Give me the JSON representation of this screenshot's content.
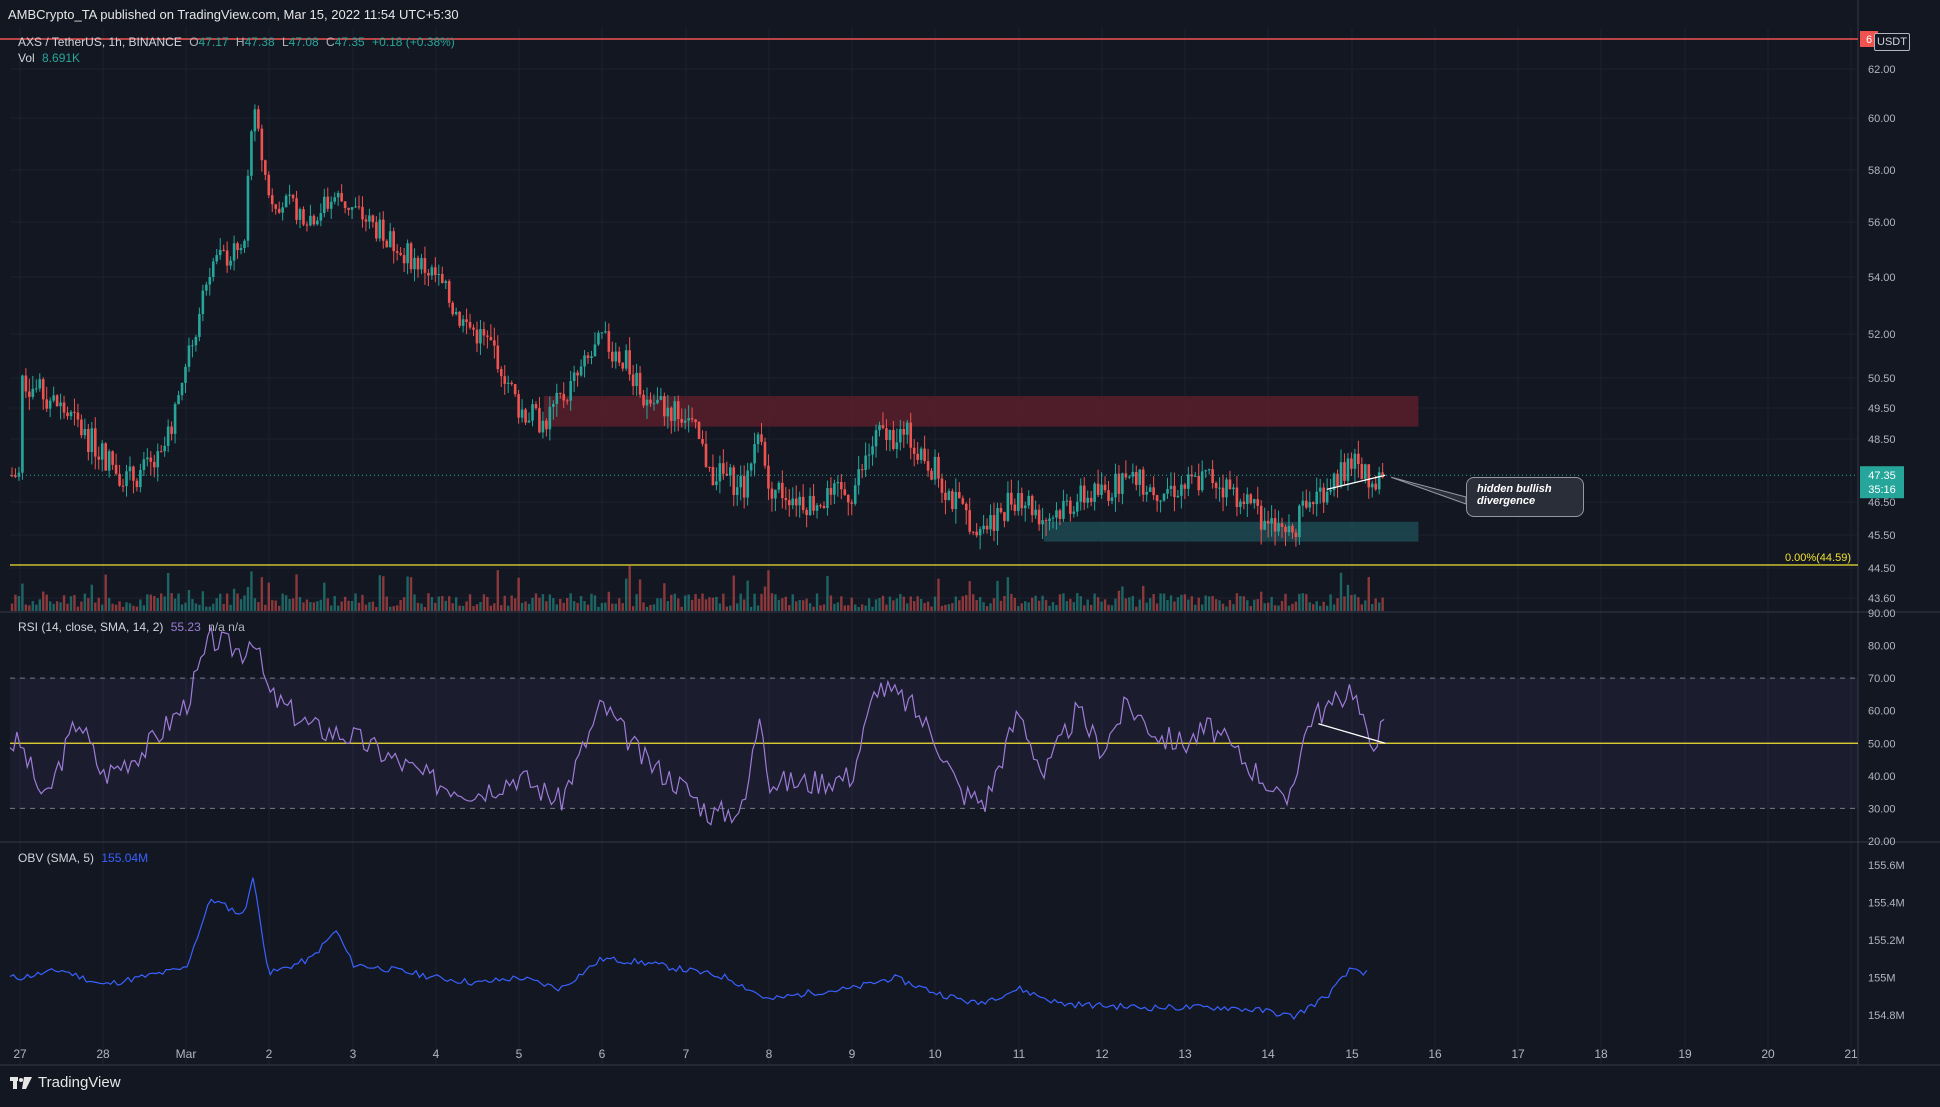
{
  "header": {
    "publisher_line": "AMBCrypto_TA published on TradingView.com, Mar 15, 2022 11:54 UTC+5:30"
  },
  "brand": {
    "name": "TradingView"
  },
  "legend": {
    "symbol": "AXS / TetherUS, 1h, BINANCE",
    "o_label": "O",
    "o_val": "47.17",
    "h_label": "H",
    "h_val": "47.38",
    "l_label": "L",
    "l_val": "47.08",
    "c_label": "C",
    "c_val": "47.35",
    "change": "+0.18 (+0.38%)",
    "vol_label": "Vol",
    "vol_val": "8.691K",
    "rsi_label": "RSI (14, close, SMA, 14, 2)",
    "rsi_val": "55.23",
    "rsi_na": "n/a n/a",
    "obv_label": "OBV (SMA, 5)",
    "obv_val": "155.04M"
  },
  "currency_tag": "USDT",
  "annotation": {
    "line1": "hidden bullish",
    "line2": "divergence"
  },
  "colors": {
    "background": "#131722",
    "up": "#26a69a",
    "down": "#ef5350",
    "fib": "#f0e130",
    "rsi": "#9c7cd6",
    "obv": "#3961ff",
    "resistance_zone": "#5a1f2a",
    "support_zone": "#1d4a52"
  },
  "chart_data": [
    {
      "type": "candlestick",
      "name": "AXS / TetherUS, 1h, BINANCE",
      "x_tick_labels": [
        "27",
        "28",
        "Mar",
        "2",
        "3",
        "4",
        "5",
        "6",
        "7",
        "8",
        "9",
        "10",
        "11",
        "12",
        "13",
        "14",
        "15",
        "16",
        "17",
        "18",
        "19",
        "20",
        "21"
      ],
      "y_tick_labels": [
        "62.00",
        "60.00",
        "58.00",
        "56.00",
        "54.00",
        "52.00",
        "50.50",
        "49.50",
        "48.50",
        "46.50",
        "45.50",
        "44.50",
        "43.60"
      ],
      "close_path": [
        [
          "27",
          50.5
        ],
        [
          "27.5",
          49.5
        ],
        [
          "28",
          48.0
        ],
        [
          "28.3",
          47.2
        ],
        [
          "28.7",
          47.8
        ],
        [
          "Mar",
          50.8
        ],
        [
          "1.3",
          54.5
        ],
        [
          "1.7",
          55.0
        ],
        [
          "1.8",
          60.5
        ],
        [
          "2",
          57.0
        ],
        [
          "2.5",
          56.2
        ],
        [
          "2.8",
          57.0
        ],
        [
          "3",
          56.5
        ],
        [
          "3.5",
          55.2
        ],
        [
          "4",
          54.0
        ],
        [
          "4.3",
          52.5
        ],
        [
          "4.7",
          51.5
        ],
        [
          "5",
          49.5
        ],
        [
          "5.3",
          49.0
        ],
        [
          "5.7",
          50.5
        ],
        [
          "6",
          51.8
        ],
        [
          "6.3",
          51.0
        ],
        [
          "6.5",
          49.8
        ],
        [
          "7",
          49.3
        ],
        [
          "7.3",
          47.5
        ],
        [
          "7.7",
          47.0
        ],
        [
          "7.9",
          49.0
        ],
        [
          "8",
          47.0
        ],
        [
          "8.5",
          46.5
        ],
        [
          "9",
          46.8
        ],
        [
          "9.3",
          48.6
        ],
        [
          "9.7",
          48.6
        ],
        [
          "10",
          47.5
        ],
        [
          "10.3",
          46.2
        ],
        [
          "10.6",
          45.8
        ],
        [
          "11",
          46.8
        ],
        [
          "11.3",
          46.0
        ],
        [
          "11.7",
          46.6
        ],
        [
          "12",
          46.8
        ],
        [
          "12.3",
          47.2
        ],
        [
          "12.7",
          46.9
        ],
        [
          "13",
          47.0
        ],
        [
          "13.3",
          47.3
        ],
        [
          "13.7",
          46.6
        ],
        [
          "14",
          45.9
        ],
        [
          "14.2",
          45.3
        ],
        [
          "14.5",
          46.5
        ],
        [
          "14.8",
          47.3
        ],
        [
          "15",
          47.8
        ],
        [
          "15.2",
          47.3
        ],
        [
          "15.4",
          47.35
        ]
      ],
      "last_price": 47.35,
      "last_price_countdown": "35:16",
      "top_right_tag": "6",
      "levels": [
        {
          "label": "0.00%(44.59)",
          "value": 44.59,
          "color": "#f0e130"
        }
      ],
      "zones": [
        {
          "name": "resistance",
          "from_x": "5.3",
          "to_x": "15.8",
          "low": 48.9,
          "high": 49.9
        },
        {
          "name": "support",
          "from_x": "11.3",
          "to_x": "15.8",
          "low": 45.3,
          "high": 45.9
        }
      ],
      "divergence_line": {
        "from": [
          "14.7",
          46.9
        ],
        "to": [
          "15.4",
          47.35
        ]
      }
    },
    {
      "type": "bar",
      "name": "Vol",
      "last_value": "8.691K"
    },
    {
      "type": "line",
      "name": "RSI (14, close, SMA, 14, 2)",
      "y_tick_labels": [
        "90.00",
        "80.00",
        "70.00",
        "60.00",
        "50.00",
        "40.00",
        "30.00",
        "20.00"
      ],
      "bands": {
        "upper": 70,
        "lower": 30,
        "middle": 50
      },
      "values_path": [
        [
          "27",
          50
        ],
        [
          "27.3",
          32
        ],
        [
          "27.7",
          58
        ],
        [
          "28",
          40
        ],
        [
          "28.5",
          48
        ],
        [
          "Mar",
          62
        ],
        [
          "1.3",
          82
        ],
        [
          "1.7",
          78
        ],
        [
          "1.8",
          84
        ],
        [
          "2",
          65
        ],
        [
          "2.5",
          55
        ],
        [
          "3",
          52
        ],
        [
          "3.5",
          45
        ],
        [
          "4",
          38
        ],
        [
          "4.5",
          35
        ],
        [
          "5",
          40
        ],
        [
          "5.5",
          32
        ],
        [
          "6",
          62
        ],
        [
          "6.5",
          45
        ],
        [
          "7",
          36
        ],
        [
          "7.3",
          28
        ],
        [
          "7.7",
          30
        ],
        [
          "7.9",
          62
        ],
        [
          "8",
          38
        ],
        [
          "8.5",
          38
        ],
        [
          "9",
          40
        ],
        [
          "9.3",
          68
        ],
        [
          "9.7",
          62
        ],
        [
          "10",
          52
        ],
        [
          "10.3",
          35
        ],
        [
          "10.6",
          32
        ],
        [
          "11",
          60
        ],
        [
          "11.3",
          40
        ],
        [
          "11.7",
          60
        ],
        [
          "12",
          48
        ],
        [
          "12.3",
          62
        ],
        [
          "12.7",
          52
        ],
        [
          "13",
          50
        ],
        [
          "13.3",
          55
        ],
        [
          "13.7",
          45
        ],
        [
          "14",
          38
        ],
        [
          "14.2",
          30
        ],
        [
          "14.5",
          58
        ],
        [
          "14.8",
          62
        ],
        [
          "15",
          68
        ],
        [
          "15.2",
          50
        ],
        [
          "15.4",
          55.23
        ]
      ],
      "divergence_line": {
        "from": [
          "14.6",
          56
        ],
        "to": [
          "15.4",
          50
        ]
      },
      "last_value": 55.23
    },
    {
      "type": "line",
      "name": "OBV (SMA, 5)",
      "y_tick_labels": [
        "155.6M",
        "155.4M",
        "155.2M",
        "155M",
        "154.8M"
      ],
      "values_path": [
        [
          "27",
          155.0
        ],
        [
          "27.5",
          155.04
        ],
        [
          "28",
          154.96
        ],
        [
          "Mar",
          155.05
        ],
        [
          "1.3",
          155.42
        ],
        [
          "1.7",
          155.33
        ],
        [
          "1.8",
          155.55
        ],
        [
          "2",
          155.02
        ],
        [
          "2.5",
          155.1
        ],
        [
          "2.8",
          155.25
        ],
        [
          "3",
          155.07
        ],
        [
          "3.5",
          155.04
        ],
        [
          "4",
          155.0
        ],
        [
          "4.5",
          154.97
        ],
        [
          "5",
          155.0
        ],
        [
          "5.5",
          154.94
        ],
        [
          "6",
          155.1
        ],
        [
          "6.5",
          155.08
        ],
        [
          "7",
          155.04
        ],
        [
          "7.5",
          155.0
        ],
        [
          "8",
          154.88
        ],
        [
          "8.5",
          154.92
        ],
        [
          "9",
          154.94
        ],
        [
          "9.5",
          155.0
        ],
        [
          "10",
          154.92
        ],
        [
          "10.5",
          154.86
        ],
        [
          "11",
          154.94
        ],
        [
          "11.5",
          154.86
        ],
        [
          "12",
          154.85
        ],
        [
          "12.5",
          154.84
        ],
        [
          "13",
          154.84
        ],
        [
          "13.5",
          154.84
        ],
        [
          "14",
          154.82
        ],
        [
          "14.3",
          154.79
        ],
        [
          "14.7",
          154.9
        ],
        [
          "15",
          155.05
        ],
        [
          "15.2",
          155.02
        ]
      ],
      "last_value": "155.04M"
    }
  ]
}
